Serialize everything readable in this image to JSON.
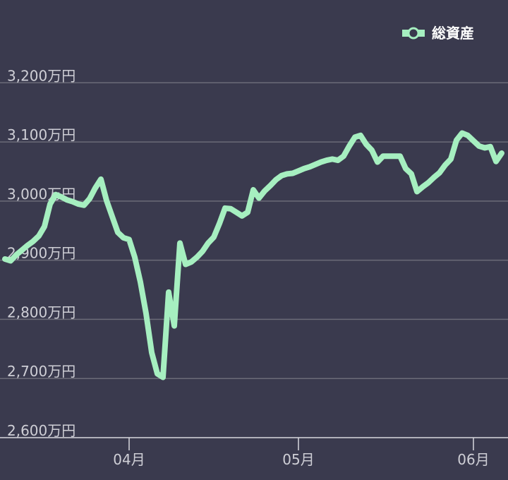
{
  "chart_data": {
    "type": "line",
    "categories": [
      null,
      null,
      null,
      null,
      null,
      null,
      null,
      null,
      null,
      null,
      null,
      null,
      null,
      null,
      null,
      null,
      null,
      null,
      null,
      null,
      null,
      null,
      "04月",
      null,
      null,
      null,
      null,
      null,
      null,
      null,
      null,
      null,
      null,
      null,
      null,
      null,
      null,
      null,
      null,
      null,
      null,
      null,
      null,
      null,
      null,
      null,
      null,
      null,
      null,
      null,
      null,
      null,
      "05月",
      null,
      null,
      null,
      null,
      null,
      null,
      null,
      null,
      null,
      null,
      null,
      null,
      null,
      null,
      null,
      null,
      null,
      null,
      null,
      null,
      null,
      null,
      null,
      null,
      null,
      null,
      null,
      null,
      null,
      null,
      "06月",
      null,
      null,
      null,
      null,
      null
    ],
    "series": [
      {
        "name": "総資産",
        "color": "#a6efc0",
        "values": [
          2902,
          2899,
          2909,
          2917,
          2925,
          2932,
          2941,
          2957,
          2995,
          3011,
          3007,
          3002,
          2999,
          2995,
          2993,
          3004,
          3022,
          3037,
          3001,
          2974,
          2947,
          2938,
          2935,
          2905,
          2863,
          2810,
          2744,
          2708,
          2702,
          2846,
          2789,
          2929,
          2893,
          2897,
          2905,
          2915,
          2929,
          2939,
          2962,
          2988,
          2987,
          2981,
          2975,
          2981,
          3019,
          3005,
          3017,
          3026,
          3036,
          3043,
          3046,
          3047,
          3051,
          3055,
          3058,
          3062,
          3066,
          3069,
          3071,
          3069,
          3076,
          3093,
          3108,
          3111,
          3096,
          3086,
          3066,
          3076,
          3076,
          3076,
          3076,
          3055,
          3046,
          3016,
          3024,
          3031,
          3040,
          3048,
          3061,
          3071,
          3103,
          3115,
          3111,
          3102,
          3093,
          3090,
          3092,
          3067,
          3081
        ]
      }
    ],
    "ylim": [
      2600,
      3340
    ],
    "yticks": [
      {
        "value": 2600,
        "label": "2,600万円"
      },
      {
        "value": 2700,
        "label": "2,700万円"
      },
      {
        "value": 2800,
        "label": "2,800万円"
      },
      {
        "value": 2900,
        "label": "2,900万円"
      },
      {
        "value": 3000,
        "label": "3,000万円"
      },
      {
        "value": 3100,
        "label": "3,100万円"
      },
      {
        "value": 3200,
        "label": "3,200万円"
      }
    ],
    "grid": true,
    "legend": "top-right"
  }
}
